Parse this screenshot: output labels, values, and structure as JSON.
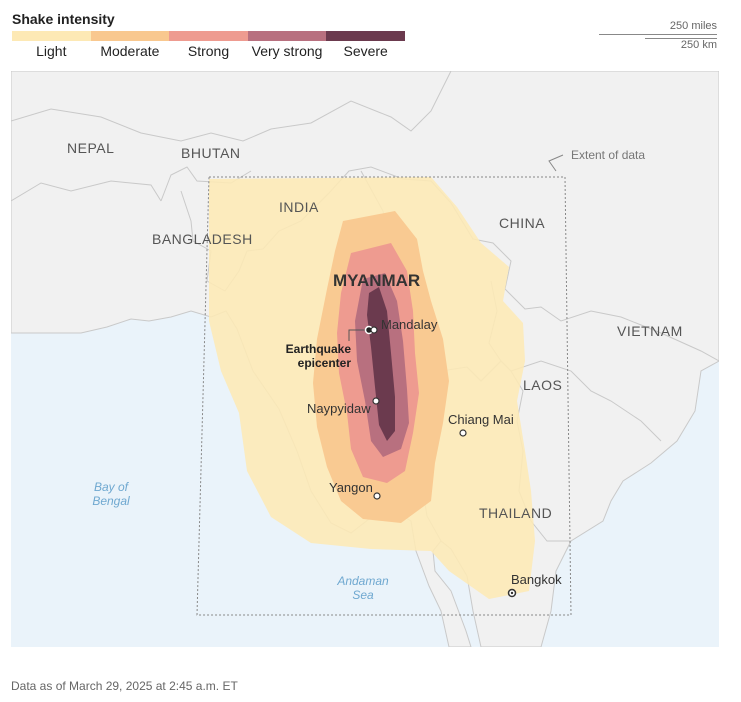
{
  "legend": {
    "title": "Shake intensity",
    "levels": [
      {
        "label": "Light",
        "color": "#fde9b5"
      },
      {
        "label": "Moderate",
        "color": "#f9c88f"
      },
      {
        "label": "Strong",
        "color": "#ee9b90"
      },
      {
        "label": "Very strong",
        "color": "#b8707f"
      },
      {
        "label": "Severe",
        "color": "#6b3a4e"
      }
    ]
  },
  "scale": {
    "miles": "250 miles",
    "km": "250 km"
  },
  "map": {
    "countries": {
      "nepal": "NEPAL",
      "bhutan": "BHUTAN",
      "india": "INDIA",
      "bangladesh": "BANGLADESH",
      "china": "CHINA",
      "myanmar": "MYANMAR",
      "vietnam": "VIETNAM",
      "laos": "LAOS",
      "thailand": "THAILAND"
    },
    "cities": {
      "mandalay": "Mandalay",
      "naypyidaw": "Naypyidaw",
      "chiang_mai": "Chiang Mai",
      "yangon": "Yangon",
      "bangkok": "Bangkok"
    },
    "water": {
      "bay_line1": "Bay of",
      "bay_line2": "Bengal",
      "andaman_line1": "Andaman",
      "andaman_line2": "Sea"
    },
    "epicenter": {
      "line1": "Earthquake",
      "line2": "epicenter"
    },
    "extent_label": "Extent of data",
    "colors": {
      "land": "#f1f1f1",
      "water": "#eaf3fa",
      "border": "#c9c9c9",
      "water_label": "#6fa8d0"
    }
  },
  "footer": "Data as of March 29, 2025 at 2:45 a.m. ET"
}
